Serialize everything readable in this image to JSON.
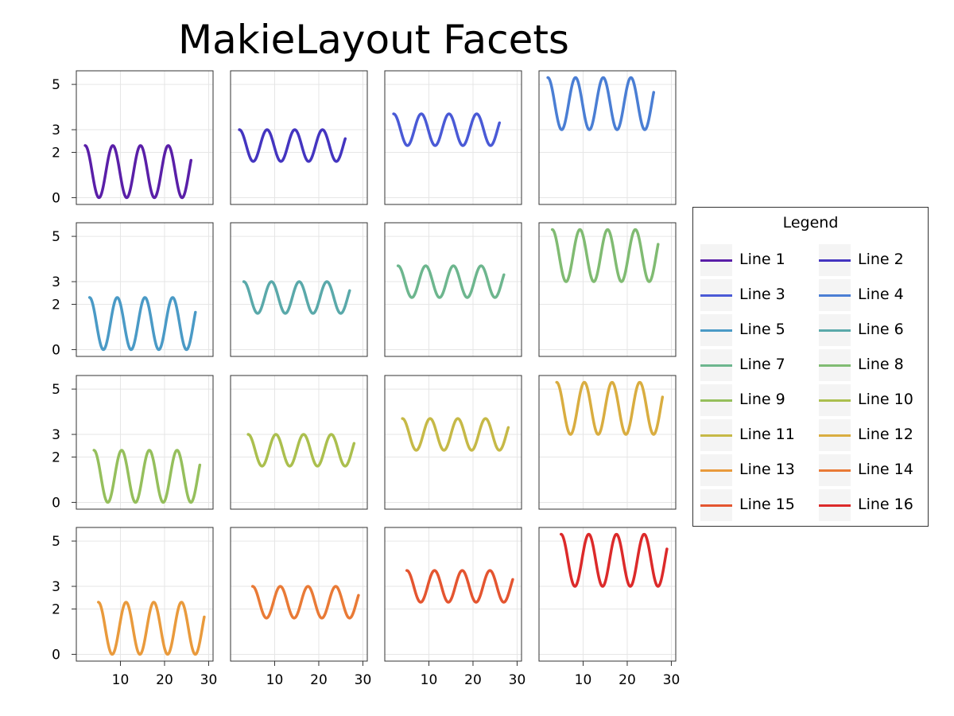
{
  "title": "MakieLayout Facets",
  "legend": {
    "title": "Legend",
    "entries": [
      {
        "label": "Line 1",
        "color": "#5a1fa8"
      },
      {
        "label": "Line 2",
        "color": "#4435c0"
      },
      {
        "label": "Line 3",
        "color": "#4a5ad6"
      },
      {
        "label": "Line 4",
        "color": "#4a7ed4"
      },
      {
        "label": "Line 5",
        "color": "#4a9ac6"
      },
      {
        "label": "Line 6",
        "color": "#5aa9aa"
      },
      {
        "label": "Line 7",
        "color": "#6db68e"
      },
      {
        "label": "Line 8",
        "color": "#80bb72"
      },
      {
        "label": "Line 9",
        "color": "#95bf5c"
      },
      {
        "label": "Line 10",
        "color": "#abbf4e"
      },
      {
        "label": "Line 11",
        "color": "#c6b947"
      },
      {
        "label": "Line 12",
        "color": "#d9ad40"
      },
      {
        "label": "Line 13",
        "color": "#e99a3c"
      },
      {
        "label": "Line 14",
        "color": "#e97a36"
      },
      {
        "label": "Line 15",
        "color": "#e45530"
      },
      {
        "label": "Line 16",
        "color": "#dc2a2a"
      }
    ]
  },
  "chart_data": {
    "type": "line",
    "layout": "4x4 facet grid",
    "title": "MakieLayout Facets",
    "xlim": [
      0,
      31
    ],
    "ylim": [
      -0.3,
      5.6
    ],
    "xticks": [
      "10",
      "20",
      "30"
    ],
    "yticks": [
      "0",
      "2",
      "3",
      "5"
    ],
    "ytick_values": [
      0,
      2,
      3,
      5
    ],
    "xtick_values": [
      10,
      20,
      30
    ],
    "grid": true,
    "legend_position": "right",
    "series": [
      {
        "name": "Line 1",
        "x_start": 2,
        "x_end": 26,
        "offset": 1.15,
        "amplitude": 1.15,
        "period": 6.28
      },
      {
        "name": "Line 2",
        "x_start": 2,
        "x_end": 26,
        "offset": 2.3,
        "amplitude": 0.7,
        "period": 6.28
      },
      {
        "name": "Line 3",
        "x_start": 2,
        "x_end": 26,
        "offset": 3.0,
        "amplitude": 0.7,
        "period": 6.28
      },
      {
        "name": "Line 4",
        "x_start": 2,
        "x_end": 26,
        "offset": 4.15,
        "amplitude": 1.15,
        "period": 6.28
      },
      {
        "name": "Line 5",
        "x_start": 3,
        "x_end": 27,
        "offset": 1.15,
        "amplitude": 1.15,
        "period": 6.28
      },
      {
        "name": "Line 6",
        "x_start": 3,
        "x_end": 27,
        "offset": 2.3,
        "amplitude": 0.7,
        "period": 6.28
      },
      {
        "name": "Line 7",
        "x_start": 3,
        "x_end": 27,
        "offset": 3.0,
        "amplitude": 0.7,
        "period": 6.28
      },
      {
        "name": "Line 8",
        "x_start": 3,
        "x_end": 27,
        "offset": 4.15,
        "amplitude": 1.15,
        "period": 6.28
      },
      {
        "name": "Line 9",
        "x_start": 4,
        "x_end": 28,
        "offset": 1.15,
        "amplitude": 1.15,
        "period": 6.28
      },
      {
        "name": "Line 10",
        "x_start": 4,
        "x_end": 28,
        "offset": 2.3,
        "amplitude": 0.7,
        "period": 6.28
      },
      {
        "name": "Line 11",
        "x_start": 4,
        "x_end": 28,
        "offset": 3.0,
        "amplitude": 0.7,
        "period": 6.28
      },
      {
        "name": "Line 12",
        "x_start": 4,
        "x_end": 28,
        "offset": 4.15,
        "amplitude": 1.15,
        "period": 6.28
      },
      {
        "name": "Line 13",
        "x_start": 5,
        "x_end": 29,
        "offset": 1.15,
        "amplitude": 1.15,
        "period": 6.28
      },
      {
        "name": "Line 14",
        "x_start": 5,
        "x_end": 29,
        "offset": 2.3,
        "amplitude": 0.7,
        "period": 6.28
      },
      {
        "name": "Line 15",
        "x_start": 5,
        "x_end": 29,
        "offset": 3.0,
        "amplitude": 0.7,
        "period": 6.28
      },
      {
        "name": "Line 16",
        "x_start": 5,
        "x_end": 29,
        "offset": 4.15,
        "amplitude": 1.15,
        "period": 6.28
      }
    ]
  }
}
